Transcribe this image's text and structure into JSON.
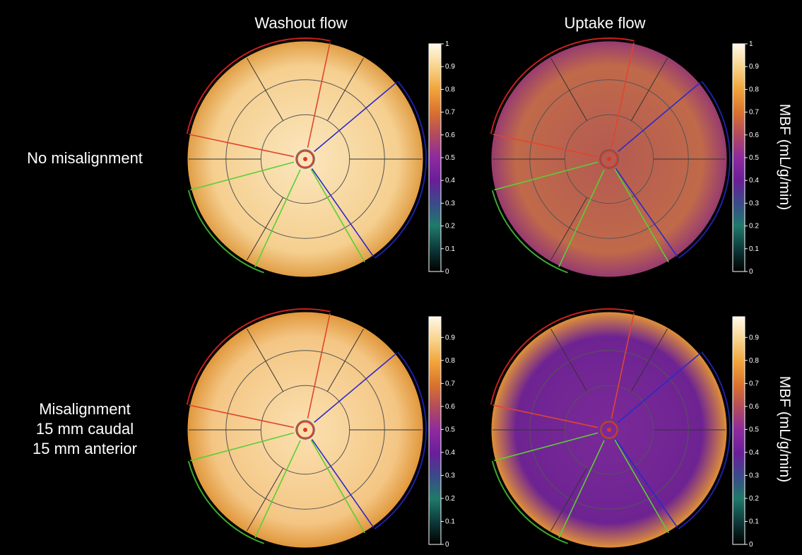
{
  "columns": [
    "Washout flow",
    "Uptake flow"
  ],
  "rows": [
    {
      "lines": [
        "No misalignment"
      ]
    },
    {
      "lines": [
        "Misalignment",
        "15 mm caudal",
        "15 mm anterior"
      ]
    }
  ],
  "unit_label": "MBF (mL/g/min)",
  "colorbar_ticks": [
    [
      "1",
      "0.9",
      "0.8",
      "0.7",
      "0.6",
      "0.5",
      "0.4",
      "0.3",
      "0.2",
      "0.1",
      "0"
    ],
    [
      "0.9",
      "0.8",
      "0.7",
      "0.6",
      "0.5",
      "0.4",
      "0.3",
      "0.2",
      "0.1",
      "0"
    ]
  ],
  "colormap": [
    "#000000",
    "#0d3a3a",
    "#1f7a6a",
    "#3a4a8a",
    "#6a1e9a",
    "#8e2aa0",
    "#b34a5e",
    "#d9722e",
    "#f2a43a",
    "#f8d48c",
    "#fff8e8"
  ],
  "panels": [
    {
      "name": "washout-no-misalignment",
      "base": "#f5cf8f",
      "inner": "#fbe6bd",
      "ring": "#e2a14a"
    },
    {
      "name": "uptake-no-misalignment",
      "base": "#c06a4a",
      "inner": "#b45a52",
      "ring": "#9a3e6e"
    },
    {
      "name": "washout-misalignment",
      "base": "#f4c684",
      "inner": "#fbe0b0",
      "ring": "#e29a40"
    },
    {
      "name": "uptake-misalignment",
      "base": "#6e2392",
      "inner": "#7a2a98",
      "ring": "#d98a3c"
    }
  ]
}
